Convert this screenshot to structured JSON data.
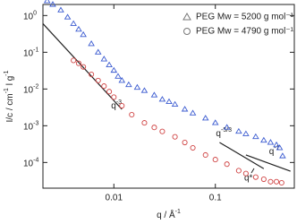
{
  "chart_data": {
    "type": "scatter",
    "xlabel": {
      "text": "q / Å",
      "sup": "-1"
    },
    "ylabel": {
      "text": "I/c / cm",
      "sup": "-1",
      "text2": " l g",
      "sup2": "-1"
    },
    "log_x": true,
    "log_y": true,
    "xlim": [
      0.002,
      0.6
    ],
    "ylim": [
      2e-05,
      2
    ],
    "xticks": [
      0.01,
      0.1
    ],
    "yticks": [
      {
        "value": 1,
        "label": "10",
        "sup": "0"
      },
      {
        "value": 0.1,
        "label": "10",
        "sup": "-1"
      },
      {
        "value": 0.01,
        "label": "10",
        "sup": "-2"
      },
      {
        "value": 0.001,
        "label": "10",
        "sup": "-3"
      },
      {
        "value": 0.0001,
        "label": "10",
        "sup": "-4"
      }
    ],
    "legend": "top-right",
    "series": [
      {
        "name": "PEG Mw = 5200 g mol⁻¹",
        "marker": "triangle",
        "color": "#3b5bd0",
        "x": [
          0.0022,
          0.0025,
          0.003,
          0.0035,
          0.004,
          0.0045,
          0.005,
          0.006,
          0.007,
          0.008,
          0.009,
          0.01,
          0.011,
          0.012,
          0.014,
          0.017,
          0.02,
          0.025,
          0.03,
          0.035,
          0.04,
          0.05,
          0.06,
          0.08,
          0.1,
          0.13,
          0.17,
          0.2,
          0.25,
          0.3,
          0.35,
          0.4,
          0.43,
          0.46
        ],
        "values": [
          2.5,
          2.0,
          1.4,
          0.9,
          0.6,
          0.42,
          0.3,
          0.17,
          0.1,
          0.065,
          0.045,
          0.032,
          0.022,
          0.017,
          0.013,
          0.011,
          0.009,
          0.0068,
          0.0052,
          0.0045,
          0.0038,
          0.0028,
          0.0022,
          0.0016,
          0.0012,
          0.0009,
          0.0007,
          0.0006,
          0.0005,
          0.0004,
          0.00035,
          0.0003,
          0.00025,
          0.00015
        ]
      },
      {
        "name": "PEG Mw = 4790 g mol⁻¹",
        "marker": "circle",
        "color": "#d04545",
        "x": [
          0.004,
          0.0045,
          0.005,
          0.006,
          0.007,
          0.008,
          0.009,
          0.01,
          0.012,
          0.015,
          0.02,
          0.025,
          0.03,
          0.04,
          0.05,
          0.06,
          0.08,
          0.1,
          0.13,
          0.17,
          0.2,
          0.25,
          0.3,
          0.35,
          0.4,
          0.45
        ],
        "values": [
          0.06,
          0.05,
          0.04,
          0.025,
          0.017,
          0.012,
          0.0085,
          0.006,
          0.0035,
          0.002,
          0.0012,
          0.0009,
          0.0007,
          0.0005,
          0.00035,
          0.00025,
          0.00016,
          0.00012,
          9e-05,
          6e-05,
          5e-05,
          4e-05,
          3.5e-05,
          3e-05,
          3e-05,
          2.8e-05
        ]
      }
    ],
    "guides": [
      {
        "x": [
          0.002,
          0.012
        ],
        "y": [
          0.6,
          0.0028
        ],
        "text": "q",
        "sup": "-3"
      },
      {
        "x": [
          0.11,
          0.3
        ],
        "y": [
          0.00035,
          6.8e-05
        ],
        "text": "q",
        "sup": "-5/3"
      },
      {
        "x": [
          0.2,
          0.55
        ],
        "y": [
          0.00016,
          5.8e-05
        ],
        "text": "q",
        "sup": "-1"
      }
    ],
    "marker_label": {
      "text": "q*"
    }
  }
}
